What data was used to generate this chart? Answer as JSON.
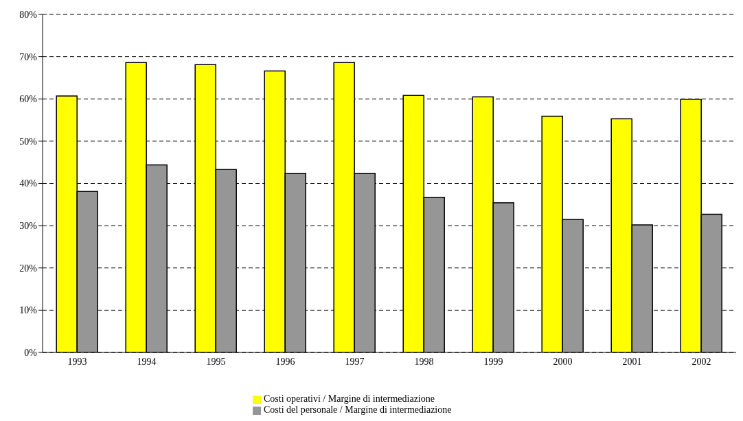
{
  "chart_data": {
    "type": "bar",
    "categories": [
      "1993",
      "1994",
      "1995",
      "1996",
      "1997",
      "1998",
      "1999",
      "2000",
      "2001",
      "2002"
    ],
    "series": [
      {
        "name": "Costi operativi / Margine di intermediazione",
        "color": "#ffff00",
        "values": [
          60.7,
          68.6,
          68.1,
          66.6,
          68.6,
          60.8,
          60.5,
          55.9,
          55.3,
          59.9
        ]
      },
      {
        "name": "Costi del personale / Margine di intermediazione",
        "color": "#969696",
        "values": [
          38.1,
          44.4,
          43.3,
          42.4,
          42.4,
          36.7,
          35.4,
          31.5,
          30.2,
          32.7
        ]
      }
    ],
    "ylim": [
      0,
      80
    ],
    "yticks": [
      {
        "value": 0,
        "label": "0%"
      },
      {
        "value": 10,
        "label": "10%"
      },
      {
        "value": 20,
        "label": "20%"
      },
      {
        "value": 30,
        "label": "30%"
      },
      {
        "value": 40,
        "label": "40%"
      },
      {
        "value": 50,
        "label": "50%"
      },
      {
        "value": 60,
        "label": "60%"
      },
      {
        "value": 70,
        "label": "70%"
      },
      {
        "value": 80,
        "label": "80%"
      }
    ],
    "grid": "y",
    "legend": "bottom"
  }
}
